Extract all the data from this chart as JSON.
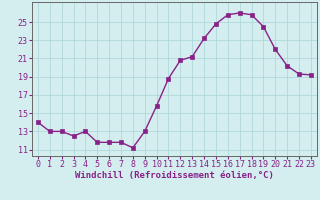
{
  "x": [
    0,
    1,
    2,
    3,
    4,
    5,
    6,
    7,
    8,
    9,
    10,
    11,
    12,
    13,
    14,
    15,
    16,
    17,
    18,
    19,
    20,
    21,
    22,
    23
  ],
  "y": [
    14.0,
    13.0,
    13.0,
    12.5,
    13.0,
    11.8,
    11.8,
    11.8,
    11.2,
    13.0,
    15.8,
    18.8,
    20.8,
    21.2,
    23.2,
    24.8,
    25.8,
    26.0,
    25.8,
    24.5,
    22.0,
    20.2,
    19.3,
    19.2
  ],
  "line_color": "#882288",
  "marker": "s",
  "marker_size": 2.2,
  "bg_color": "#d4eef0",
  "grid_color": "#b0d8dc",
  "xlabel": "Windchill (Refroidissement éolien,°C)",
  "xlabel_fontsize": 6.5,
  "ytick_labels": [
    "11",
    "13",
    "15",
    "17",
    "19",
    "21",
    "23",
    "25"
  ],
  "yticks": [
    11,
    13,
    15,
    17,
    19,
    21,
    23,
    25
  ],
  "ylim": [
    10.3,
    27.2
  ],
  "xlim": [
    -0.5,
    23.5
  ],
  "tick_fontsize": 6.0,
  "line_width": 1.0
}
